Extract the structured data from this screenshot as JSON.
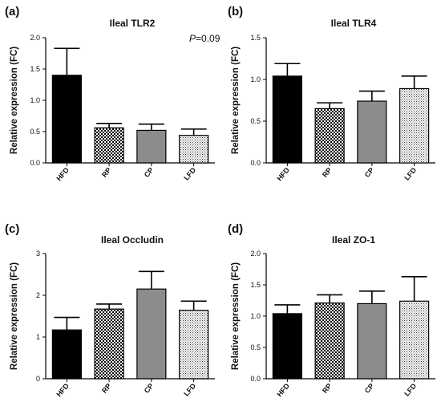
{
  "figure": {
    "ylabel": "Relative expression (FC)",
    "categories": [
      "HFD",
      "RP",
      "CP",
      "LFD"
    ],
    "colors": {
      "HFD": "#000000",
      "RP": "checkered",
      "CP": "#8c8c8c",
      "LFD": "dotted"
    }
  },
  "chart_data": [
    {
      "type": "bar",
      "panel": "(a)",
      "title": "Ileal TLR2",
      "categories": [
        "HFD",
        "RP",
        "CP",
        "LFD"
      ],
      "values": [
        1.4,
        0.56,
        0.52,
        0.44
      ],
      "errors": [
        0.43,
        0.07,
        0.1,
        0.1
      ],
      "ylabel": "Relative expression (FC)",
      "ylim": [
        0,
        2.0
      ],
      "yticks": [
        "0.0",
        "0.5",
        "1.0",
        "1.5",
        "2.0"
      ],
      "ytick_values": [
        0,
        0.5,
        1.0,
        1.5,
        2.0
      ],
      "annotation": {
        "p_letter": "P",
        "p_value": "=0.09"
      }
    },
    {
      "type": "bar",
      "panel": "(b)",
      "title": "Ileal TLR4",
      "categories": [
        "HFD",
        "RP",
        "CP",
        "LFD"
      ],
      "values": [
        1.04,
        0.65,
        0.74,
        0.89
      ],
      "errors": [
        0.15,
        0.07,
        0.12,
        0.15
      ],
      "ylabel": "Relative expression (FC)",
      "ylim": [
        0,
        1.5
      ],
      "yticks": [
        "0.0",
        "0.5",
        "1.0",
        "1.5"
      ],
      "ytick_values": [
        0,
        0.5,
        1.0,
        1.5
      ]
    },
    {
      "type": "bar",
      "panel": "(c)",
      "title": "Ileal Occludin",
      "categories": [
        "HFD",
        "RP",
        "CP",
        "LFD"
      ],
      "values": [
        1.17,
        1.67,
        2.15,
        1.64
      ],
      "errors": [
        0.3,
        0.12,
        0.42,
        0.22
      ],
      "ylabel": "Relative expression (FC)",
      "ylim": [
        0,
        3
      ],
      "yticks": [
        "0",
        "1",
        "2",
        "3"
      ],
      "ytick_values": [
        0,
        1,
        2,
        3
      ]
    },
    {
      "type": "bar",
      "panel": "(d)",
      "title": "Ileal ZO-1",
      "categories": [
        "HFD",
        "RP",
        "CP",
        "LFD"
      ],
      "values": [
        1.04,
        1.21,
        1.2,
        1.24
      ],
      "errors": [
        0.14,
        0.13,
        0.2,
        0.39
      ],
      "ylabel": "Relative expression (FC)",
      "ylim": [
        0,
        2.0
      ],
      "yticks": [
        "0.0",
        "0.5",
        "1.0",
        "1.5",
        "2.0"
      ],
      "ytick_values": [
        0,
        0.5,
        1.0,
        1.5,
        2.0
      ]
    }
  ]
}
